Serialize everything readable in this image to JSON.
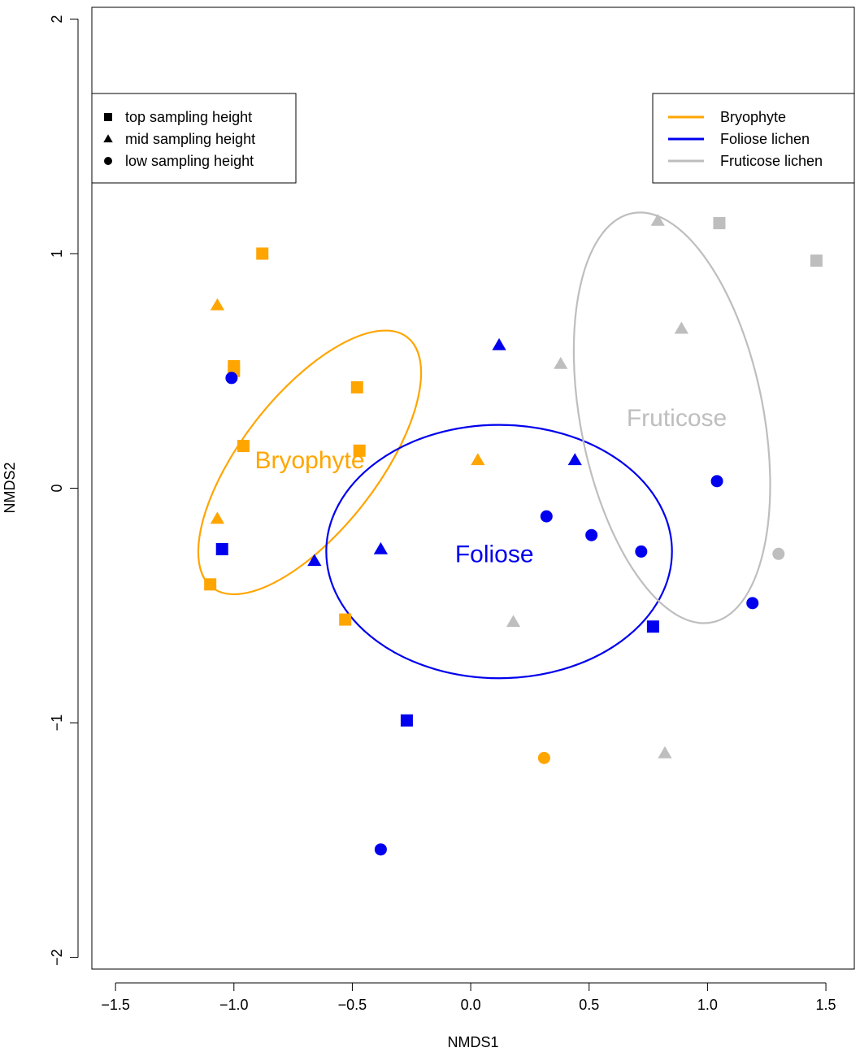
{
  "chart_data": {
    "type": "scatter",
    "xlabel": "NMDS1",
    "ylabel": "NMDS2",
    "xlim": [
      -1.6,
      1.62
    ],
    "ylim": [
      -2.05,
      2.05
    ],
    "xticks": [
      {
        "value": -1.5,
        "label": "−1.5"
      },
      {
        "value": -1.0,
        "label": "−1.0"
      },
      {
        "value": -0.5,
        "label": "−0.5"
      },
      {
        "value": 0.0,
        "label": "0.0"
      },
      {
        "value": 0.5,
        "label": "0.5"
      },
      {
        "value": 1.0,
        "label": "1.0"
      },
      {
        "value": 1.5,
        "label": "1.5"
      }
    ],
    "yticks": [
      {
        "value": -2,
        "label": "−2"
      },
      {
        "value": -1,
        "label": "−1"
      },
      {
        "value": 0,
        "label": "0"
      },
      {
        "value": 1,
        "label": "1"
      },
      {
        "value": 2,
        "label": "2"
      }
    ],
    "grid": false,
    "colors": {
      "Bryophyte": "#FFA500",
      "Foliose lichen": "#0000EE",
      "Fruticose lichen": "#BEBEBE"
    },
    "shape_legend": {
      "position": "top-left",
      "entries": [
        {
          "shape": "square",
          "label": "top sampling height"
        },
        {
          "shape": "triangle",
          "label": "mid sampling height"
        },
        {
          "shape": "circle",
          "label": "low  sampling height"
        }
      ]
    },
    "color_legend": {
      "position": "top-right",
      "entries": [
        {
          "group": "Bryophyte",
          "label": "Bryophyte"
        },
        {
          "group": "Foliose lichen",
          "label": "Foliose lichen"
        },
        {
          "group": "Fruticose lichen",
          "label": "Fruticose lichen"
        }
      ]
    },
    "ellipse_labels": [
      {
        "group": "Bryophyte",
        "text": "Bryophyte",
        "x": -0.68,
        "y": 0.12
      },
      {
        "group": "Foliose lichen",
        "text": "Foliose",
        "x": 0.1,
        "y": -0.28
      },
      {
        "group": "Fruticose lichen",
        "text": "Fruticose",
        "x": 0.87,
        "y": 0.3
      }
    ],
    "ellipses": [
      {
        "group": "Bryophyte",
        "cx": -0.68,
        "cy": 0.11,
        "rx": 0.67,
        "ry": 0.29,
        "angle_deg": -52
      },
      {
        "group": "Foliose lichen",
        "cx": 0.12,
        "cy": -0.27,
        "rx": 0.73,
        "ry": 0.54,
        "angle_deg": 0
      },
      {
        "group": "Fruticose lichen",
        "cx": 0.85,
        "cy": 0.3,
        "rx": 0.88,
        "ry": 0.39,
        "angle_deg": 79
      }
    ],
    "series": [
      {
        "name": "Bryophyte",
        "points": [
          {
            "x": -0.88,
            "y": 1.0,
            "shape": "square"
          },
          {
            "x": -1.0,
            "y": 0.52,
            "shape": "square"
          },
          {
            "x": -1.0,
            "y": 0.5,
            "shape": "square"
          },
          {
            "x": -0.48,
            "y": 0.43,
            "shape": "square"
          },
          {
            "x": -0.96,
            "y": 0.18,
            "shape": "square"
          },
          {
            "x": -0.47,
            "y": 0.16,
            "shape": "square"
          },
          {
            "x": -1.1,
            "y": -0.41,
            "shape": "square"
          },
          {
            "x": -0.53,
            "y": -0.56,
            "shape": "square"
          },
          {
            "x": -1.07,
            "y": 0.78,
            "shape": "triangle"
          },
          {
            "x": -1.07,
            "y": -0.13,
            "shape": "triangle"
          },
          {
            "x": 0.03,
            "y": 0.12,
            "shape": "triangle"
          },
          {
            "x": 0.31,
            "y": -1.15,
            "shape": "circle"
          }
        ]
      },
      {
        "name": "Foliose lichen",
        "points": [
          {
            "x": -1.05,
            "y": -0.26,
            "shape": "square"
          },
          {
            "x": -0.27,
            "y": -0.99,
            "shape": "square"
          },
          {
            "x": 0.77,
            "y": -0.59,
            "shape": "square"
          },
          {
            "x": 0.12,
            "y": 0.61,
            "shape": "triangle"
          },
          {
            "x": 0.44,
            "y": 0.12,
            "shape": "triangle"
          },
          {
            "x": -0.66,
            "y": -0.31,
            "shape": "triangle"
          },
          {
            "x": -0.38,
            "y": -0.26,
            "shape": "triangle"
          },
          {
            "x": -1.01,
            "y": 0.47,
            "shape": "circle"
          },
          {
            "x": 0.32,
            "y": -0.12,
            "shape": "circle"
          },
          {
            "x": 0.51,
            "y": -0.2,
            "shape": "circle"
          },
          {
            "x": 0.72,
            "y": -0.27,
            "shape": "circle"
          },
          {
            "x": 1.04,
            "y": 0.03,
            "shape": "circle"
          },
          {
            "x": 1.19,
            "y": -0.49,
            "shape": "circle"
          },
          {
            "x": -0.38,
            "y": -1.54,
            "shape": "circle"
          }
        ]
      },
      {
        "name": "Fruticose lichen",
        "points": [
          {
            "x": 1.05,
            "y": 1.13,
            "shape": "square"
          },
          {
            "x": 1.46,
            "y": 0.97,
            "shape": "square"
          },
          {
            "x": 0.79,
            "y": 1.14,
            "shape": "triangle"
          },
          {
            "x": 0.89,
            "y": 0.68,
            "shape": "triangle"
          },
          {
            "x": 0.38,
            "y": 0.53,
            "shape": "triangle"
          },
          {
            "x": 0.18,
            "y": -0.57,
            "shape": "triangle"
          },
          {
            "x": 0.82,
            "y": -1.13,
            "shape": "triangle"
          },
          {
            "x": 1.3,
            "y": -0.28,
            "shape": "circle"
          }
        ]
      }
    ]
  }
}
